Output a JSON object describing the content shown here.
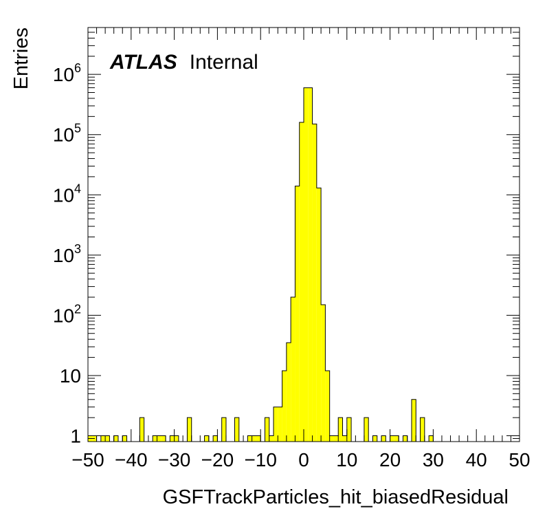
{
  "chart_data": {
    "type": "bar",
    "label": {
      "bold": "ATLAS",
      "normal": "Internal"
    },
    "xlabel": "GSFTrackParticles_hit_biasedResidual",
    "ylabel": "Entries",
    "xlim": [
      -50,
      50
    ],
    "ylim": [
      0.8,
      6000000
    ],
    "yscale": "log",
    "fill_color": "#ffff00",
    "bin_width": 1,
    "x_ticks": [
      {
        "v": -50,
        "t": "−50"
      },
      {
        "v": -40,
        "t": "−40"
      },
      {
        "v": -30,
        "t": "−30"
      },
      {
        "v": -20,
        "t": "−20"
      },
      {
        "v": -10,
        "t": "−10"
      },
      {
        "v": 0,
        "t": "0"
      },
      {
        "v": 10,
        "t": "10"
      },
      {
        "v": 20,
        "t": "20"
      },
      {
        "v": 30,
        "t": "30"
      },
      {
        "v": 40,
        "t": "40"
      },
      {
        "v": 50,
        "t": "50"
      }
    ],
    "y_ticks": [
      {
        "v": 1,
        "base": "1",
        "sup": ""
      },
      {
        "v": 10,
        "base": "10",
        "sup": ""
      },
      {
        "v": 100,
        "base": "10",
        "sup": "2"
      },
      {
        "v": 1000,
        "base": "10",
        "sup": "3"
      },
      {
        "v": 10000,
        "base": "10",
        "sup": "4"
      },
      {
        "v": 100000,
        "base": "10",
        "sup": "5"
      },
      {
        "v": 1000000,
        "base": "10",
        "sup": "6"
      }
    ],
    "bins": [
      {
        "x": -50,
        "y": 1
      },
      {
        "x": -49,
        "y": 1
      },
      {
        "x": -47,
        "y": 1
      },
      {
        "x": -46,
        "y": 1
      },
      {
        "x": -44,
        "y": 1
      },
      {
        "x": -42,
        "y": 1
      },
      {
        "x": -38,
        "y": 2
      },
      {
        "x": -35,
        "y": 1
      },
      {
        "x": -34,
        "y": 1
      },
      {
        "x": -33,
        "y": 1
      },
      {
        "x": -31,
        "y": 1
      },
      {
        "x": -30,
        "y": 1
      },
      {
        "x": -27,
        "y": 2
      },
      {
        "x": -23,
        "y": 1
      },
      {
        "x": -21,
        "y": 1
      },
      {
        "x": -19,
        "y": 2
      },
      {
        "x": -16,
        "y": 2
      },
      {
        "x": -13,
        "y": 1
      },
      {
        "x": -12,
        "y": 1
      },
      {
        "x": -11,
        "y": 1
      },
      {
        "x": -9,
        "y": 2
      },
      {
        "x": -8,
        "y": 1
      },
      {
        "x": -7,
        "y": 3
      },
      {
        "x": -6,
        "y": 3
      },
      {
        "x": -5,
        "y": 12
      },
      {
        "x": -4,
        "y": 35
      },
      {
        "x": -3,
        "y": 200
      },
      {
        "x": -2,
        "y": 14000
      },
      {
        "x": -1,
        "y": 160000
      },
      {
        "x": 0,
        "y": 600000
      },
      {
        "x": 1,
        "y": 600000
      },
      {
        "x": 2,
        "y": 150000
      },
      {
        "x": 3,
        "y": 13000
      },
      {
        "x": 4,
        "y": 150
      },
      {
        "x": 5,
        "y": 12
      },
      {
        "x": 6,
        "y": 1
      },
      {
        "x": 7,
        "y": 1
      },
      {
        "x": 8,
        "y": 2
      },
      {
        "x": 9,
        "y": 1
      },
      {
        "x": 10,
        "y": 2
      },
      {
        "x": 14,
        "y": 2
      },
      {
        "x": 16,
        "y": 1
      },
      {
        "x": 18,
        "y": 1
      },
      {
        "x": 20,
        "y": 1
      },
      {
        "x": 21,
        "y": 1
      },
      {
        "x": 23,
        "y": 1
      },
      {
        "x": 25,
        "y": 4
      },
      {
        "x": 27,
        "y": 2
      },
      {
        "x": 29,
        "y": 1
      }
    ]
  }
}
